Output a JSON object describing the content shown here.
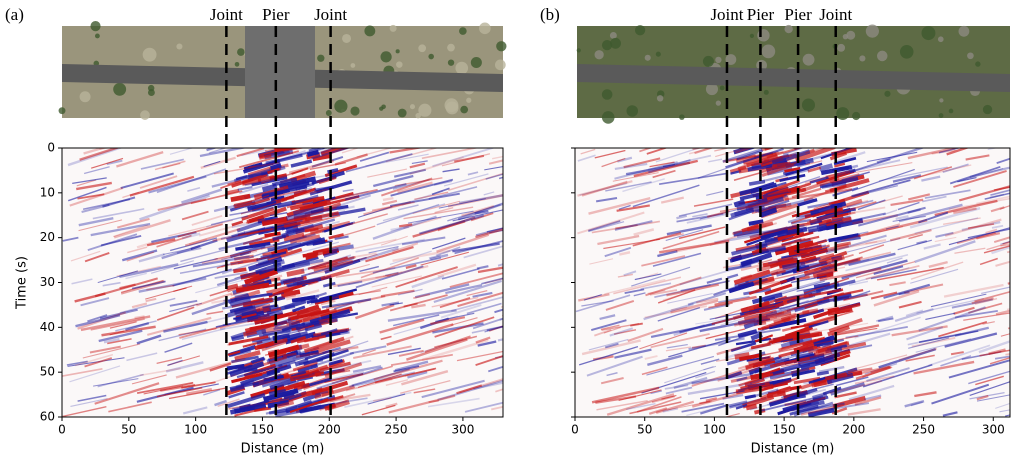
{
  "chart_data": [
    {
      "type": "heatmap",
      "panel_label": "(a)",
      "markers": [
        {
          "x": 123,
          "label": "Joint"
        },
        {
          "x": 160,
          "label": "Pier"
        },
        {
          "x": 201,
          "label": "Joint"
        }
      ],
      "xlabel": "Distance (m)",
      "ylabel": "Time (s)",
      "xlim": [
        0,
        330
      ],
      "xticks": [
        0,
        50,
        100,
        150,
        200,
        250,
        300
      ],
      "ylim": [
        0,
        60
      ],
      "y_inverted": true,
      "yticks": [
        0,
        10,
        20,
        30,
        40,
        50,
        60
      ],
      "ytick_labels": true
    },
    {
      "type": "heatmap",
      "panel_label": "(b)",
      "markers": [
        {
          "x": 109,
          "label": "Joint"
        },
        {
          "x": 133,
          "label": "Pier"
        },
        {
          "x": 160,
          "label": "Pier"
        },
        {
          "x": 187,
          "label": "Joint"
        }
      ],
      "xlabel": "Distance (m)",
      "xlim": [
        0,
        312
      ],
      "xticks": [
        0,
        50,
        100,
        150,
        200,
        250,
        300
      ],
      "ylim": [
        0,
        60
      ],
      "y_inverted": true,
      "yticks": [
        0,
        10,
        20,
        30,
        40,
        50,
        60
      ],
      "ytick_labels": false
    }
  ]
}
